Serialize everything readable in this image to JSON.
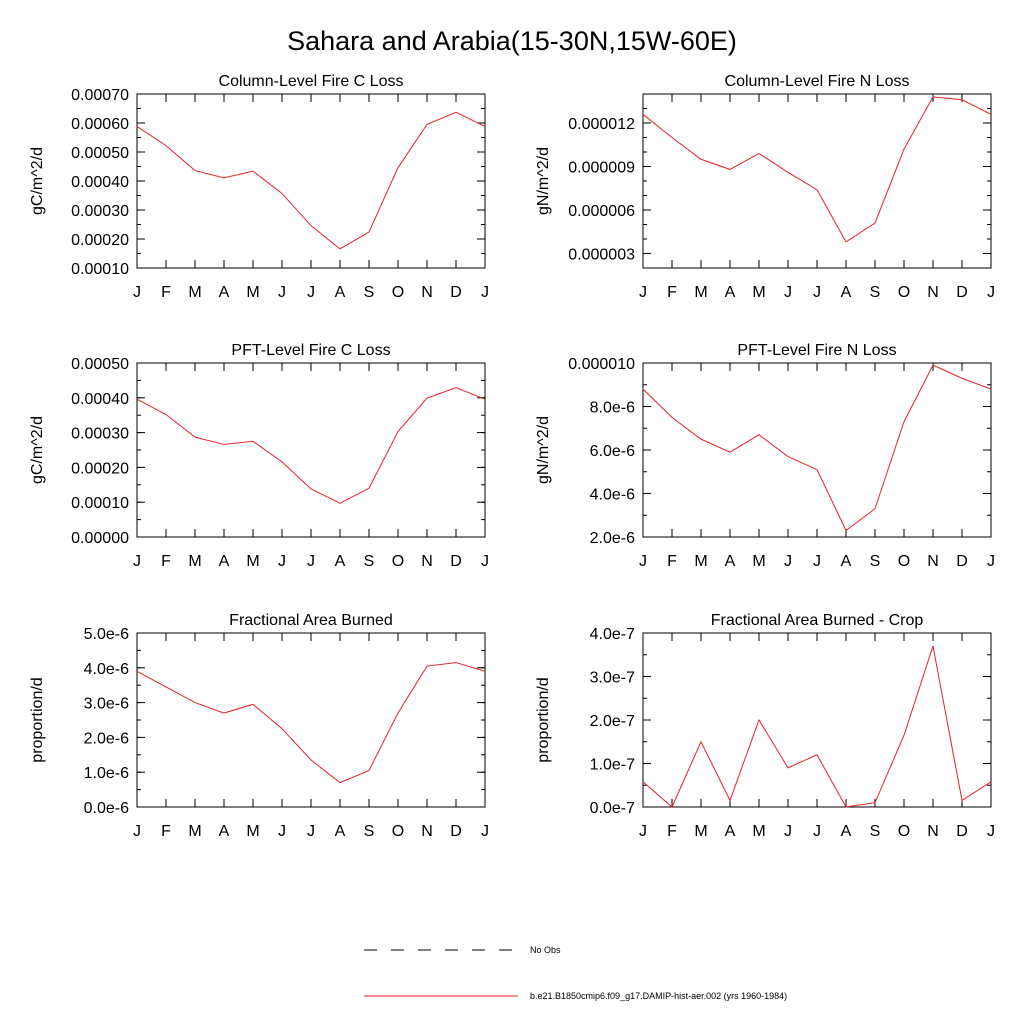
{
  "figure": {
    "title": "Sahara and Arabia(15-30N,15W-60E)",
    "series_color": "#e8202a"
  },
  "legend": [
    {
      "label": "No Obs",
      "style": "dashed",
      "color": "#000000"
    },
    {
      "label": "b.e21.B1850cmip6.f09_g17.DAMIP-hist-aer.002 (yrs 1960-1984)",
      "style": "solid",
      "color": "#e8202a"
    }
  ],
  "chart_data": [
    {
      "type": "line",
      "title": "Column-Level Fire C Loss",
      "ylabel": "gC/m^2/d",
      "xlabel": "",
      "categories": [
        "J",
        "F",
        "M",
        "A",
        "M",
        "J",
        "J",
        "A",
        "S",
        "O",
        "N",
        "D",
        "J"
      ],
      "series": [
        {
          "values": [
            0.000588,
            0.000522,
            0.000436,
            0.000411,
            0.000434,
            0.000357,
            0.000246,
            0.000166,
            0.000224,
            0.000446,
            0.000595,
            0.000637,
            0.000588
          ]
        }
      ],
      "ylim": [
        0.0001,
        0.0007
      ],
      "yticks": [
        0.0001,
        0.0002,
        0.0003,
        0.0004,
        0.0005,
        0.0006,
        0.0007
      ],
      "ytick_labels": [
        "0.00010",
        "0.00020",
        "0.00030",
        "0.00040",
        "0.00050",
        "0.00060",
        "0.00070"
      ],
      "yminor": 5e-05
    },
    {
      "type": "line",
      "title": "Column-Level Fire N Loss",
      "ylabel": "gN/m^2/d",
      "xlabel": "",
      "categories": [
        "J",
        "F",
        "M",
        "A",
        "M",
        "J",
        "J",
        "A",
        "S",
        "O",
        "N",
        "D",
        "J"
      ],
      "series": [
        {
          "values": [
            1.26e-05,
            1.1e-05,
            9.5e-06,
            8.8e-06,
            9.9e-06,
            8.6e-06,
            7.4e-06,
            3.8e-06,
            5.1e-06,
            1.02e-05,
            1.38e-05,
            1.36e-05,
            1.26e-05
          ]
        }
      ],
      "ylim": [
        2e-06,
        1.4e-05
      ],
      "yticks": [
        3e-06,
        6e-06,
        9e-06,
        1.2e-05
      ],
      "ytick_labels": [
        "0.000003",
        "0.000006",
        "0.000009",
        "0.000012"
      ],
      "yminor": 1e-06
    },
    {
      "type": "line",
      "title": "PFT-Level Fire C Loss",
      "ylabel": "gC/m^2/d",
      "xlabel": "",
      "categories": [
        "J",
        "F",
        "M",
        "A",
        "M",
        "J",
        "J",
        "A",
        "S",
        "O",
        "N",
        "D",
        "J"
      ],
      "series": [
        {
          "values": [
            0.000396,
            0.000352,
            0.000287,
            0.000266,
            0.000275,
            0.000216,
            0.000138,
            9.7e-05,
            0.00014,
            0.000303,
            0.000399,
            0.000429,
            0.000396
          ]
        }
      ],
      "ylim": [
        0.0,
        0.0005
      ],
      "yticks": [
        0.0,
        0.0001,
        0.0002,
        0.0003,
        0.0004,
        0.0005
      ],
      "ytick_labels": [
        "0.00000",
        "0.00010",
        "0.00020",
        "0.00030",
        "0.00040",
        "0.00050"
      ],
      "yminor": 5e-05
    },
    {
      "type": "line",
      "title": "PFT-Level Fire N Loss",
      "ylabel": "gN/m^2/d",
      "xlabel": "",
      "categories": [
        "J",
        "F",
        "M",
        "A",
        "M",
        "J",
        "J",
        "A",
        "S",
        "O",
        "N",
        "D",
        "J"
      ],
      "series": [
        {
          "values": [
            8.8e-06,
            7.5e-06,
            6.5e-06,
            5.9e-06,
            6.7e-06,
            5.7e-06,
            5.1e-06,
            2.3e-06,
            3.3e-06,
            7.3e-06,
            9.9e-06,
            9.3e-06,
            8.8e-06
          ]
        }
      ],
      "ylim": [
        2e-06,
        1e-05
      ],
      "yticks": [
        2e-06,
        4e-06,
        6e-06,
        8e-06,
        1e-05
      ],
      "ytick_labels": [
        "2.0e-6",
        "4.0e-6",
        "6.0e-6",
        "8.0e-6",
        "0.000010"
      ],
      "yminor": 1e-06
    },
    {
      "type": "line",
      "title": "Fractional Area Burned",
      "ylabel": "proportion/d",
      "xlabel": "",
      "categories": [
        "J",
        "F",
        "M",
        "A",
        "M",
        "J",
        "J",
        "A",
        "S",
        "O",
        "N",
        "D",
        "J"
      ],
      "series": [
        {
          "values": [
            3.9e-06,
            3.45e-06,
            3e-06,
            2.7e-06,
            2.95e-06,
            2.25e-06,
            1.35e-06,
            7e-07,
            1.05e-06,
            2.7e-06,
            4.05e-06,
            4.15e-06,
            3.9e-06
          ]
        }
      ],
      "ylim": [
        0.0,
        5e-06
      ],
      "yticks": [
        0.0,
        1e-06,
        2e-06,
        3e-06,
        4e-06,
        5e-06
      ],
      "ytick_labels": [
        "0.0e-6",
        "1.0e-6",
        "2.0e-6",
        "3.0e-6",
        "4.0e-6",
        "5.0e-6"
      ],
      "yminor": 5e-07
    },
    {
      "type": "line",
      "title": "Fractional Area Burned - Crop",
      "ylabel": "proportion/d",
      "xlabel": "",
      "categories": [
        "J",
        "F",
        "M",
        "A",
        "M",
        "J",
        "J",
        "A",
        "S",
        "O",
        "N",
        "D",
        "J"
      ],
      "series": [
        {
          "values": [
            5.8e-08,
            0.0,
            1.5e-07,
            1.5e-08,
            2e-07,
            9e-08,
            1.2e-07,
            0.0,
            1e-08,
            1.65e-07,
            3.7e-07,
            1.5e-08,
            5.8e-08
          ]
        }
      ],
      "ylim": [
        0.0,
        4e-07
      ],
      "yticks": [
        0.0,
        1e-07,
        2e-07,
        3e-07,
        4e-07
      ],
      "ytick_labels": [
        "0.0e-7",
        "1.0e-7",
        "2.0e-7",
        "3.0e-7",
        "4.0e-7"
      ],
      "yminor": 5e-08
    }
  ]
}
